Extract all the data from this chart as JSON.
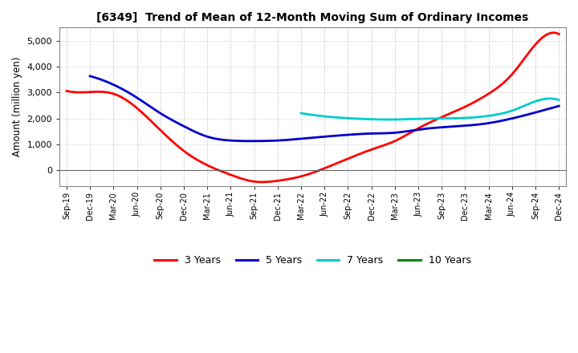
{
  "title": "[6349]  Trend of Mean of 12-Month Moving Sum of Ordinary Incomes",
  "ylabel": "Amount (million yen)",
  "background_color": "#ffffff",
  "grid_color": "#bbbbbb",
  "ylim": [
    -600,
    5500
  ],
  "yticks": [
    0,
    1000,
    2000,
    3000,
    4000,
    5000
  ],
  "x_labels": [
    "Sep-19",
    "Dec-19",
    "Mar-20",
    "Jun-20",
    "Sep-20",
    "Dec-20",
    "Mar-21",
    "Jun-21",
    "Sep-21",
    "Dec-21",
    "Mar-22",
    "Jun-22",
    "Sep-22",
    "Dec-22",
    "Mar-23",
    "Jun-23",
    "Sep-23",
    "Dec-23",
    "Mar-24",
    "Jun-24",
    "Sep-24",
    "Dec-24"
  ],
  "series": {
    "3 Years": {
      "color": "#ff0000",
      "values": [
        3060,
        3020,
        2950,
        2400,
        1550,
        750,
        200,
        -170,
        -430,
        -400,
        -230,
        80,
        450,
        800,
        1130,
        1620,
        2050,
        2450,
        2950,
        3700,
        4850,
        5250
      ]
    },
    "5 Years": {
      "color": "#0000cc",
      "values": [
        null,
        3630,
        3300,
        2800,
        2200,
        1700,
        1300,
        1150,
        1130,
        1150,
        1220,
        1300,
        1370,
        1420,
        1450,
        1570,
        1660,
        1720,
        1820,
        2000,
        2230,
        2480
      ]
    },
    "7 Years": {
      "color": "#00cccc",
      "values": [
        null,
        null,
        null,
        null,
        null,
        null,
        null,
        null,
        null,
        null,
        2200,
        2080,
        2010,
        1970,
        1960,
        1985,
        2000,
        2020,
        2100,
        2300,
        2660,
        2710
      ]
    },
    "10 Years": {
      "color": "#008800",
      "values": [
        null,
        null,
        null,
        null,
        null,
        null,
        null,
        null,
        null,
        null,
        null,
        null,
        null,
        null,
        null,
        null,
        null,
        null,
        null,
        null,
        null,
        null
      ]
    }
  },
  "legend_labels": [
    "3 Years",
    "5 Years",
    "7 Years",
    "10 Years"
  ],
  "legend_colors": [
    "#ff0000",
    "#0000cc",
    "#00cccc",
    "#008800"
  ]
}
